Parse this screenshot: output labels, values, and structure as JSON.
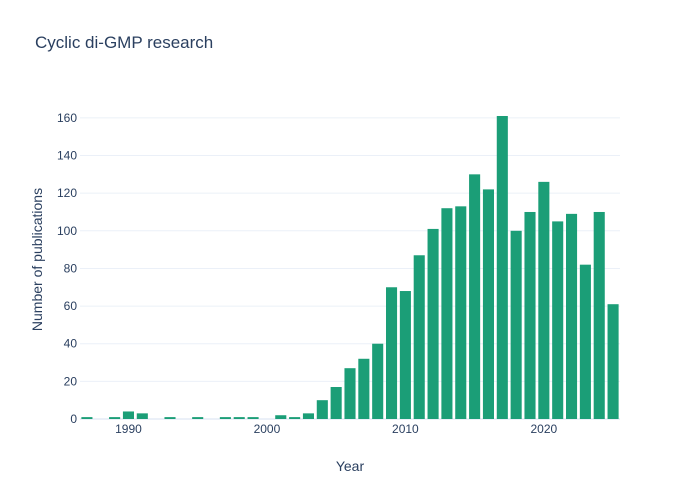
{
  "chart_data": {
    "type": "bar",
    "title": "Cyclic di-GMP research",
    "xlabel": "Year",
    "ylabel": "Number of publications",
    "x": [
      1987,
      1989,
      1990,
      1991,
      1993,
      1995,
      1997,
      1998,
      1999,
      2001,
      2002,
      2003,
      2004,
      2005,
      2006,
      2007,
      2008,
      2009,
      2010,
      2011,
      2012,
      2013,
      2014,
      2015,
      2016,
      2017,
      2018,
      2019,
      2020,
      2021,
      2022,
      2023,
      2024,
      2025
    ],
    "values": [
      1,
      1,
      4,
      3,
      1,
      1,
      1,
      1,
      1,
      2,
      1,
      3,
      10,
      17,
      27,
      32,
      40,
      70,
      68,
      87,
      101,
      112,
      113,
      130,
      122,
      161,
      100,
      110,
      126,
      105,
      109,
      82,
      110,
      61
    ],
    "xlim": [
      1986.5,
      2025.5
    ],
    "ylim": [
      0,
      169.5
    ],
    "x_ticks": [
      "1990",
      "2000",
      "2010",
      "2020"
    ],
    "y_ticks": [
      "0",
      "20",
      "40",
      "60",
      "80",
      "100",
      "120",
      "140",
      "160"
    ],
    "bar_color": "#1b9e77",
    "grid": true,
    "legend": "none"
  }
}
